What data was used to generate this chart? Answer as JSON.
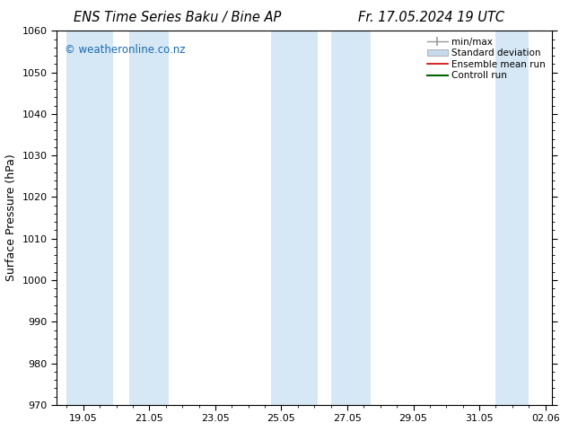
{
  "title_left": "ENS Time Series Baku / Bine AP",
  "title_right": "Fr. 17.05.2024 19 UTC",
  "ylabel": "Surface Pressure (hPa)",
  "ylim": [
    970,
    1060
  ],
  "yticks": [
    970,
    980,
    990,
    1000,
    1010,
    1020,
    1030,
    1040,
    1050,
    1060
  ],
  "x_tick_labels": [
    "19.05",
    "21.05",
    "23.05",
    "25.05",
    "27.05",
    "29.05",
    "31.05",
    "02.06"
  ],
  "shaded_bands": [
    {
      "x_start": 18.5,
      "x_end": 19.9,
      "color": "#d6e8f5",
      "alpha": 1.0
    },
    {
      "x_start": 20.4,
      "x_end": 21.6,
      "color": "#d6e8f5",
      "alpha": 1.0
    },
    {
      "x_start": 24.7,
      "x_end": 26.1,
      "color": "#d6e8f5",
      "alpha": 1.0
    },
    {
      "x_start": 26.5,
      "x_end": 27.7,
      "color": "#d6e8f5",
      "alpha": 1.0
    },
    {
      "x_start": 31.5,
      "x_end": 32.5,
      "color": "#d6e8f5",
      "alpha": 1.0
    }
  ],
  "watermark": "© weatheronline.co.nz",
  "watermark_color": "#1a6ab0",
  "legend_items": [
    {
      "label": "min/max",
      "color": "#999999",
      "linestyle": "-",
      "linewidth": 1.0
    },
    {
      "label": "Standard deviation",
      "color": "#c5daea",
      "linestyle": "-",
      "linewidth": 4
    },
    {
      "label": "Ensemble mean run",
      "color": "#cc0000",
      "linestyle": "-",
      "linewidth": 1.2
    },
    {
      "label": "Controll run",
      "color": "#006600",
      "linestyle": "-",
      "linewidth": 1.5
    }
  ],
  "bg_color": "#ffffff",
  "title_fontsize": 10.5,
  "axis_fontsize": 9,
  "tick_fontsize": 8,
  "font_family": "DejaVu Sans",
  "x_min": 18.2,
  "x_max": 33.2
}
